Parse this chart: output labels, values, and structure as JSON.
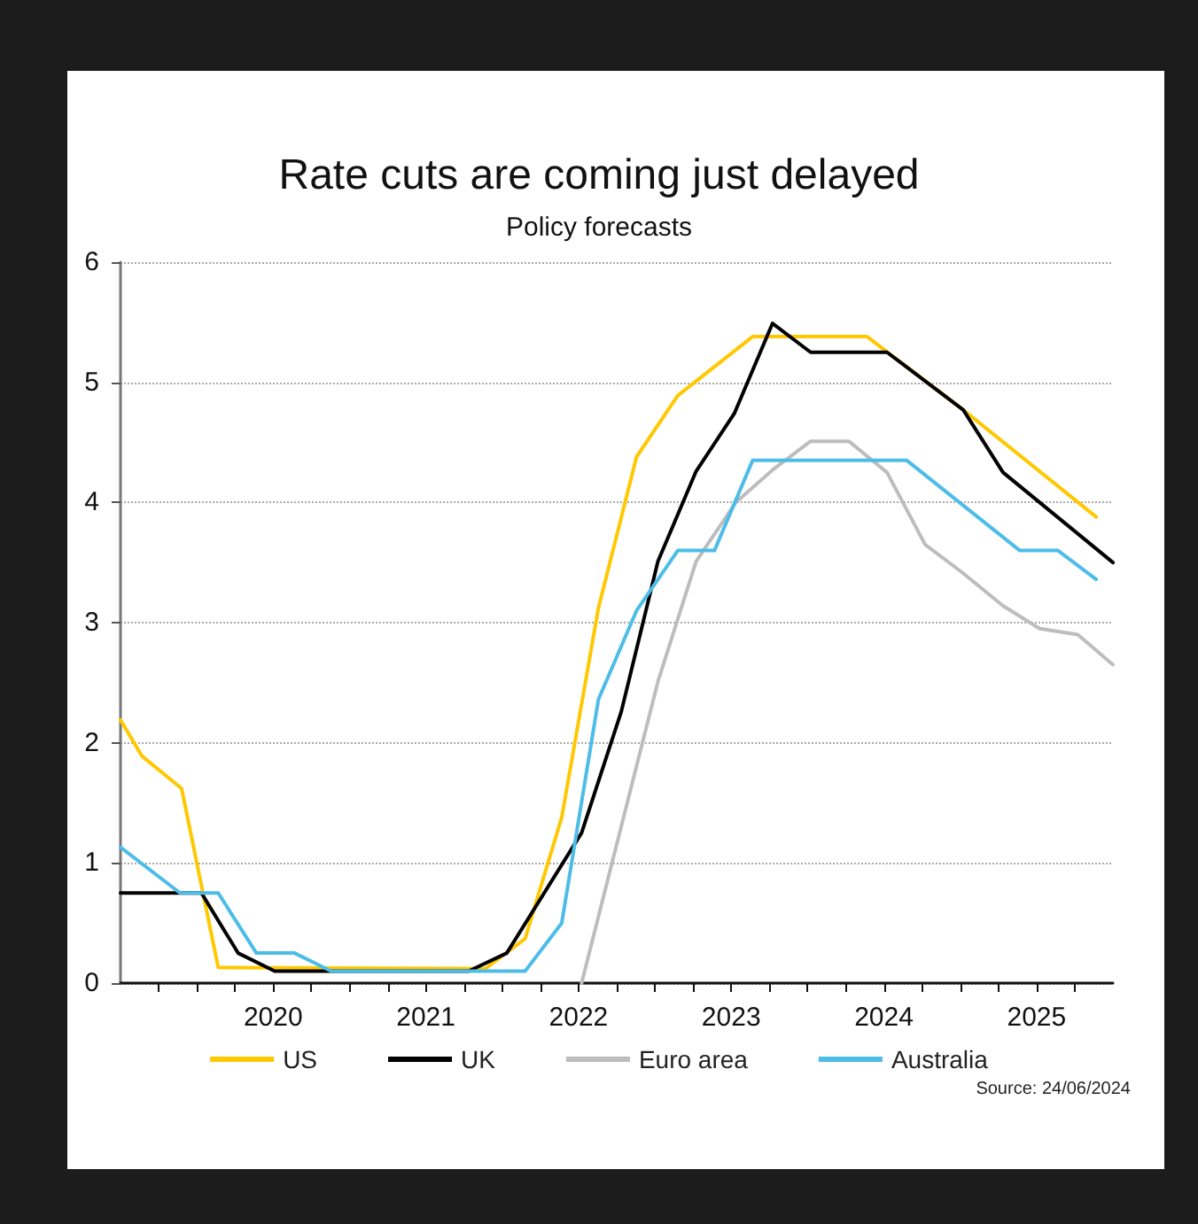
{
  "chart_data": {
    "type": "line",
    "title": "Rate cuts are coming just delayed",
    "subtitle": "Policy forecasts",
    "annotations": [
      "Source: 24/06/2024"
    ],
    "xlim": [
      2019.5,
      2026
    ],
    "xticks": [
      {
        "value": 2019.75,
        "label": null
      },
      {
        "value": 2020,
        "label": null
      },
      {
        "value": 2020.25,
        "label": null
      },
      {
        "value": 2020.5,
        "label": "2020"
      },
      {
        "value": 2020.75,
        "label": null
      },
      {
        "value": 2021,
        "label": null
      },
      {
        "value": 2021.25,
        "label": null
      },
      {
        "value": 2021.5,
        "label": "2021"
      },
      {
        "value": 2021.75,
        "label": null
      },
      {
        "value": 2022,
        "label": null
      },
      {
        "value": 2022.25,
        "label": null
      },
      {
        "value": 2022.5,
        "label": "2022"
      },
      {
        "value": 2022.75,
        "label": null
      },
      {
        "value": 2023,
        "label": null
      },
      {
        "value": 2023.25,
        "label": null
      },
      {
        "value": 2023.5,
        "label": "2023"
      },
      {
        "value": 2023.75,
        "label": null
      },
      {
        "value": 2024,
        "label": null
      },
      {
        "value": 2024.25,
        "label": null
      },
      {
        "value": 2024.5,
        "label": "2024"
      },
      {
        "value": 2024.75,
        "label": null
      },
      {
        "value": 2025,
        "label": null
      },
      {
        "value": 2025.25,
        "label": null
      },
      {
        "value": 2025.5,
        "label": "2025"
      },
      {
        "value": 2025.75,
        "label": null
      }
    ],
    "ylim": [
      0,
      6
    ],
    "yticks": [
      0,
      1,
      2,
      3,
      4,
      5,
      6
    ],
    "grid": "y",
    "legend": "bottom",
    "line_style": "solid",
    "series": [
      {
        "name": "US",
        "color": "#ffc800",
        "x": [
          2019.5,
          2019.64,
          2019.9,
          2020.14,
          2021.89,
          2022.15,
          2022.39,
          2022.63,
          2022.88,
          2023.15,
          2023.64,
          2024.39,
          2025.02,
          2025.89
        ],
        "values": [
          2.19,
          1.89,
          1.62,
          0.13,
          0.12,
          0.37,
          1.38,
          3.12,
          4.38,
          4.89,
          5.38,
          5.38,
          4.77,
          3.88
        ]
      },
      {
        "name": "UK",
        "color": "#000000",
        "x": [
          2019.5,
          2020.03,
          2020.27,
          2020.51,
          2021.78,
          2022.03,
          2022.52,
          2022.78,
          2023.02,
          2023.27,
          2023.52,
          2023.77,
          2024.02,
          2024.52,
          2025.02,
          2025.28,
          2026
        ],
        "values": [
          0.75,
          0.75,
          0.25,
          0.1,
          0.1,
          0.25,
          1.25,
          2.26,
          3.51,
          4.26,
          4.74,
          5.49,
          5.25,
          5.25,
          4.77,
          4.25,
          3.5
        ]
      },
      {
        "name": "Euro area",
        "color": "#bdbdbd",
        "x": [
          2022.52,
          2023.02,
          2023.27,
          2023.53,
          2023.77,
          2024.02,
          2024.27,
          2024.52,
          2024.77,
          2025.01,
          2025.28,
          2025.52,
          2025.77,
          2026
        ],
        "values": [
          0,
          2.51,
          3.51,
          4.0,
          4.27,
          4.51,
          4.51,
          4.25,
          3.65,
          3.42,
          3.14,
          2.95,
          2.9,
          2.65
        ]
      },
      {
        "name": "Australia",
        "color": "#4dbde8",
        "x": [
          2019.5,
          2019.89,
          2020.14,
          2020.39,
          2020.64,
          2020.88,
          2022.15,
          2022.39,
          2022.63,
          2022.88,
          2023.15,
          2023.39,
          2023.64,
          2024.65,
          2025.39,
          2025.64,
          2025.89
        ],
        "values": [
          1.13,
          0.75,
          0.75,
          0.25,
          0.25,
          0.1,
          0.1,
          0.5,
          2.36,
          3.1,
          3.6,
          3.6,
          4.35,
          4.35,
          3.6,
          3.6,
          3.36
        ]
      }
    ]
  }
}
